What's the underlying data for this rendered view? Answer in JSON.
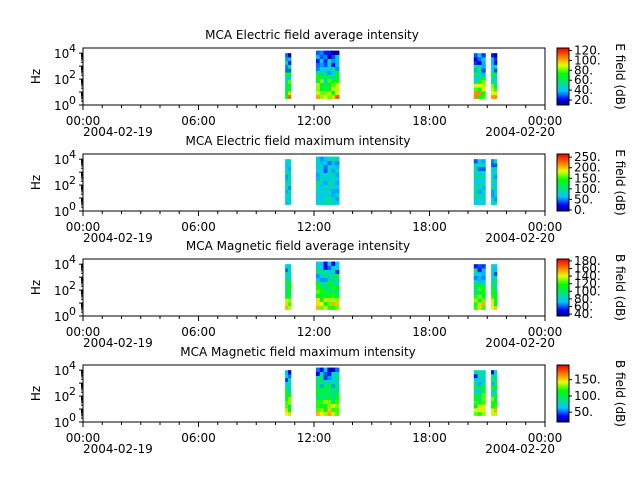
{
  "chart_data": [
    {
      "type": "heatmap",
      "title": "MCA  Electric field average intensity",
      "ylabel": "Hz",
      "yscale": "log",
      "ylim_exponents": [
        0,
        4.4
      ],
      "y_ticks": [
        {
          "base": "10",
          "exp": "0"
        },
        {
          "base": "10",
          "exp": "2"
        },
        {
          "base": "10",
          "exp": "4"
        }
      ],
      "x_ticks": [
        "00:00",
        "06:00",
        "12:00",
        "18:00",
        "00:00"
      ],
      "x_dates": [
        "2004-02-19",
        "2004-02-20"
      ],
      "x_range_hours": [
        0,
        24
      ],
      "colorbar": {
        "label": "E field (dB)",
        "ticks": [
          "120.",
          "100.",
          "80.",
          "60.",
          "40.",
          "20."
        ],
        "range": [
          10,
          125
        ]
      },
      "segments": [
        {
          "start_h": 10.5,
          "end_h": 10.8,
          "freq_exp": [
            0.5,
            4.0
          ],
          "profile": "avg"
        },
        {
          "start_h": 12.1,
          "end_h": 13.3,
          "freq_exp": [
            0.5,
            4.2
          ],
          "profile": "avg"
        },
        {
          "start_h": 20.3,
          "end_h": 20.9,
          "freq_exp": [
            0.5,
            4.0
          ],
          "profile": "avg"
        },
        {
          "start_h": 21.2,
          "end_h": 21.5,
          "freq_exp": [
            0.5,
            4.0
          ],
          "profile": "avg"
        }
      ]
    },
    {
      "type": "heatmap",
      "title": "MCA  Electric field maximum intensity",
      "ylabel": "Hz",
      "yscale": "log",
      "ylim_exponents": [
        0,
        4.4
      ],
      "y_ticks": [
        {
          "base": "10",
          "exp": "0"
        },
        {
          "base": "10",
          "exp": "2"
        },
        {
          "base": "10",
          "exp": "4"
        }
      ],
      "x_ticks": [
        "00:00",
        "06:00",
        "12:00",
        "18:00",
        "00:00"
      ],
      "x_dates": [
        "2004-02-19",
        "2004-02-20"
      ],
      "x_range_hours": [
        0,
        24
      ],
      "colorbar": {
        "label": "E field (dB)",
        "ticks": [
          "250.",
          "200.",
          "150.",
          "100.",
          "50.",
          "0."
        ],
        "range": [
          -5,
          265
        ]
      },
      "segments": [
        {
          "start_h": 10.5,
          "end_h": 10.8,
          "freq_exp": [
            0.5,
            4.0
          ],
          "profile": "maxE"
        },
        {
          "start_h": 12.1,
          "end_h": 13.3,
          "freq_exp": [
            0.5,
            4.2
          ],
          "profile": "maxE"
        },
        {
          "start_h": 20.3,
          "end_h": 20.9,
          "freq_exp": [
            0.5,
            4.0
          ],
          "profile": "maxE"
        },
        {
          "start_h": 21.2,
          "end_h": 21.5,
          "freq_exp": [
            0.5,
            4.0
          ],
          "profile": "maxE"
        }
      ]
    },
    {
      "type": "heatmap",
      "title": "MCA  Magnetic field average intensity",
      "ylabel": "Hz",
      "yscale": "log",
      "ylim_exponents": [
        0,
        4.4
      ],
      "y_ticks": [
        {
          "base": "10",
          "exp": "0"
        },
        {
          "base": "10",
          "exp": "2"
        },
        {
          "base": "10",
          "exp": "4"
        }
      ],
      "x_ticks": [
        "00:00",
        "06:00",
        "12:00",
        "18:00",
        "00:00"
      ],
      "x_dates": [
        "2004-02-19",
        "2004-02-20"
      ],
      "x_range_hours": [
        0,
        24
      ],
      "colorbar": {
        "label": "B field (dB)",
        "ticks": [
          "180.",
          "160.",
          "140.",
          "120.",
          "100.",
          "80.",
          "60.",
          "40."
        ],
        "range": [
          35,
          185
        ]
      },
      "segments": [
        {
          "start_h": 10.5,
          "end_h": 10.8,
          "freq_exp": [
            0.5,
            4.0
          ],
          "profile": "mag"
        },
        {
          "start_h": 12.1,
          "end_h": 13.3,
          "freq_exp": [
            0.5,
            4.2
          ],
          "profile": "mag"
        },
        {
          "start_h": 20.3,
          "end_h": 20.9,
          "freq_exp": [
            0.5,
            4.0
          ],
          "profile": "mag"
        },
        {
          "start_h": 21.2,
          "end_h": 21.5,
          "freq_exp": [
            0.5,
            4.0
          ],
          "profile": "mag"
        }
      ]
    },
    {
      "type": "heatmap",
      "title": "MCA  Magnetic field maximum intensity",
      "ylabel": "Hz",
      "yscale": "log",
      "ylim_exponents": [
        0,
        4.4
      ],
      "y_ticks": [
        {
          "base": "10",
          "exp": "0"
        },
        {
          "base": "10",
          "exp": "2"
        },
        {
          "base": "10",
          "exp": "4"
        }
      ],
      "x_ticks": [
        "00:00",
        "06:00",
        "12:00",
        "18:00",
        "00:00"
      ],
      "x_dates": [
        "2004-02-19",
        "2004-02-20"
      ],
      "x_range_hours": [
        0,
        24
      ],
      "colorbar": {
        "label": "B field (dB)",
        "ticks": [
          "150.",
          "100.",
          "50."
        ],
        "range": [
          20,
          195
        ]
      },
      "segments": [
        {
          "start_h": 10.5,
          "end_h": 10.8,
          "freq_exp": [
            0.5,
            4.0
          ],
          "profile": "mag"
        },
        {
          "start_h": 12.1,
          "end_h": 13.3,
          "freq_exp": [
            0.5,
            4.2
          ],
          "profile": "mag"
        },
        {
          "start_h": 20.3,
          "end_h": 20.9,
          "freq_exp": [
            0.5,
            4.0
          ],
          "profile": "mag"
        },
        {
          "start_h": 21.2,
          "end_h": 21.5,
          "freq_exp": [
            0.5,
            4.0
          ],
          "profile": "mag"
        }
      ]
    }
  ]
}
